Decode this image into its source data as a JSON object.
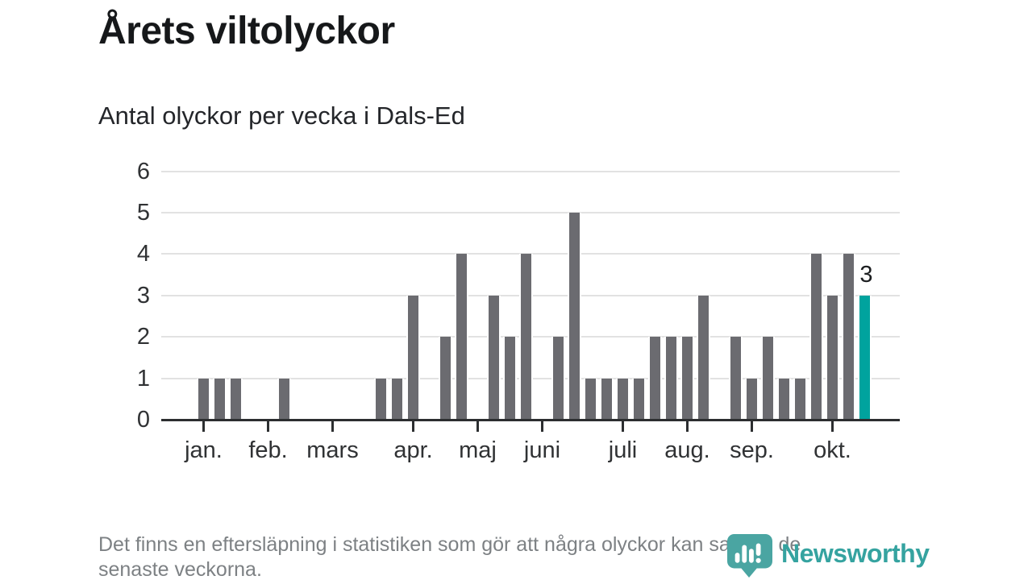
{
  "chart_data": {
    "type": "bar",
    "title": "Årets viltolyckor",
    "subtitle": "Antal olyckor per vecka i Dals-Ed",
    "x_unit": "week",
    "values": [
      0,
      0,
      1,
      1,
      1,
      0,
      0,
      1,
      0,
      0,
      0,
      0,
      0,
      1,
      1,
      3,
      0,
      2,
      4,
      0,
      3,
      2,
      4,
      0,
      2,
      5,
      1,
      1,
      1,
      1,
      2,
      2,
      2,
      3,
      0,
      2,
      1,
      2,
      1,
      1,
      4,
      3,
      4,
      3
    ],
    "highlight_index": 43,
    "highlight_value": 3,
    "highlight_label": "3",
    "month_ticks": [
      {
        "label": "jan.",
        "week_index": 2
      },
      {
        "label": "feb.",
        "week_index": 6
      },
      {
        "label": "mars",
        "week_index": 10
      },
      {
        "label": "apr.",
        "week_index": 15
      },
      {
        "label": "maj",
        "week_index": 19
      },
      {
        "label": "juni",
        "week_index": 23
      },
      {
        "label": "juli",
        "week_index": 28
      },
      {
        "label": "aug.",
        "week_index": 32
      },
      {
        "label": "sep.",
        "week_index": 36
      },
      {
        "label": "okt.",
        "week_index": 41
      }
    ],
    "ylim": [
      0,
      6
    ],
    "yticks": [
      0,
      1,
      2,
      3,
      4,
      5,
      6
    ],
    "grid": true,
    "legend": "none",
    "colors": {
      "bar": "#6b6b70",
      "highlight": "#00a39e",
      "grid": "#e2e2e2",
      "axis": "#2c2e30",
      "labels": "#303234",
      "note": "#7d8184",
      "logo": "#35a3a0"
    }
  },
  "footer": {
    "note_lines": [
      "Det finns en eftersläpning i statistiken som gör att några olyckor kan saknas de",
      "senaste veckorna."
    ]
  },
  "logo": {
    "text": "Newsworthy",
    "icon": "newsworthy-pin-barchart-icon"
  }
}
